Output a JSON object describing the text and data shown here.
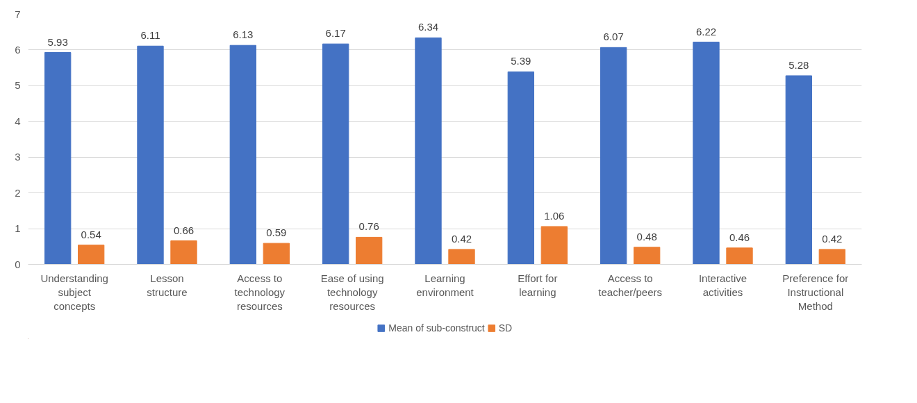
{
  "chart_data": {
    "type": "bar",
    "categories": [
      "Understanding subject concepts",
      "Lesson structure",
      "Access to technology resources",
      "Ease of using technology resources",
      "Learning environment",
      "Effort for learning",
      "Access to teacher/peers",
      "Interactive activities",
      "Preference for Instructional Method"
    ],
    "series": [
      {
        "name": "Mean of sub-construct",
        "color": "#4472c4",
        "values": [
          5.93,
          6.11,
          6.13,
          6.17,
          6.34,
          5.39,
          6.07,
          6.22,
          5.28
        ]
      },
      {
        "name": "SD",
        "color": "#ed7d31",
        "values": [
          0.54,
          0.66,
          0.59,
          0.76,
          0.42,
          1.06,
          0.48,
          0.46,
          0.42
        ]
      }
    ],
    "ylim": [
      0,
      7
    ],
    "yticks": [
      0,
      1,
      2,
      3,
      4,
      5,
      6,
      7
    ],
    "grid": "y",
    "legend": "bottom",
    "data_labels": true
  }
}
